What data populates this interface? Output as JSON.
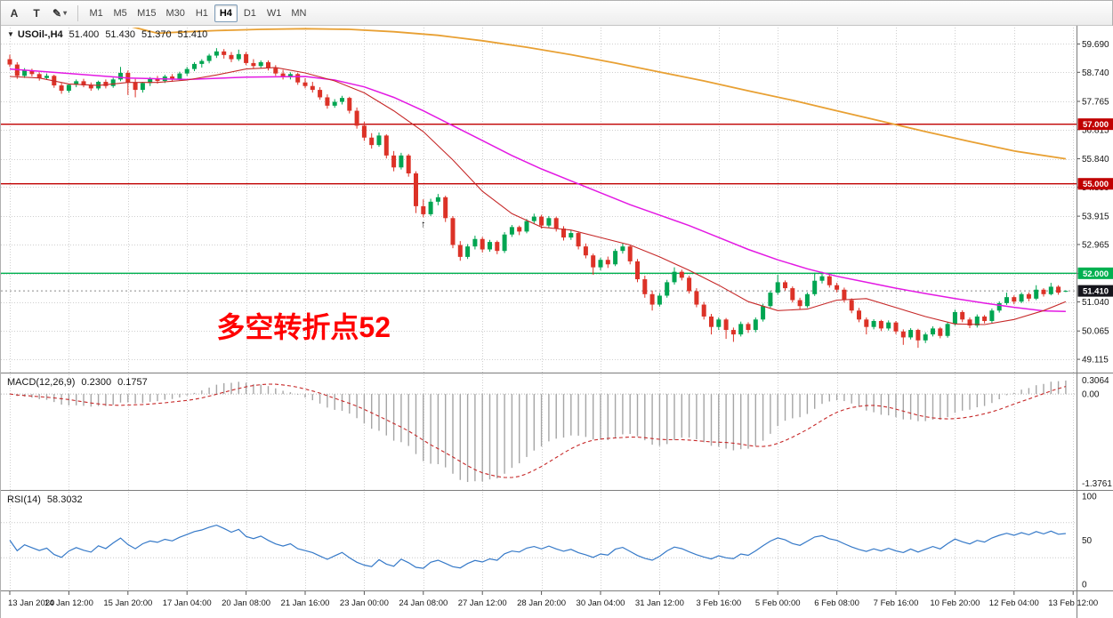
{
  "icons": {
    "chevron_down": "▾",
    "dropdown_triangle": "▼"
  },
  "toolbar": {
    "tools": [
      {
        "label": "A"
      },
      {
        "label": "T"
      },
      {
        "label": "✎"
      }
    ],
    "timeframes": [
      {
        "label": "M1"
      },
      {
        "label": "M5"
      },
      {
        "label": "M15"
      },
      {
        "label": "M30"
      },
      {
        "label": "H1"
      },
      {
        "label": "H4"
      },
      {
        "label": "D1"
      },
      {
        "label": "W1"
      },
      {
        "label": "MN"
      }
    ],
    "active_timeframe": "H4"
  },
  "chart": {
    "header": {
      "symbol": "USOil-,H4",
      "ohlc": [
        "51.400",
        "51.430",
        "51.370",
        "51.410"
      ]
    },
    "price_axis_ticks": [
      "59.690",
      "58.740",
      "57.765",
      "56.815",
      "55.840",
      "54.890",
      "53.915",
      "52.965",
      "51.990",
      "51.040",
      "50.065",
      "49.115"
    ],
    "hlines": [
      {
        "label": "57.000",
        "price": 57.0,
        "color": "#c00000"
      },
      {
        "label": "55.000",
        "price": 55.0,
        "color": "#c00000"
      },
      {
        "label": "52.000",
        "price": 52.0,
        "color": "#00b050"
      }
    ],
    "current_price": {
      "label": "51.410",
      "price": 51.41,
      "badge_color": "#15151c"
    },
    "annotation": {
      "text": "多空转折点52",
      "color": "#ff0000",
      "bar": 28,
      "price": 49.86
    },
    "marker": {
      "glyph": "↑",
      "bar": 56,
      "price": 53.88
    },
    "time_labels": [
      "13 Jan 2020",
      "14 Jan 12:00",
      "15 Jan 20:00",
      "17 Jan 04:00",
      "20 Jan 08:00",
      "21 Jan 16:00",
      "23 Jan 00:00",
      "24 Jan 08:00",
      "27 Jan 12:00",
      "28 Jan 20:00",
      "30 Jan 04:00",
      "31 Jan 12:00",
      "3 Feb 16:00",
      "5 Feb 00:00",
      "6 Feb 08:00",
      "7 Feb 16:00",
      "10 Feb 20:00",
      "12 Feb 04:00",
      "13 Feb 12:00"
    ],
    "bars_per_time_label": 8
  },
  "chart_data": {
    "type": "candlestick",
    "title": "USOil- H4",
    "ylim": [
      48.7,
      60.24
    ],
    "colors": {
      "bull": "#00a551",
      "bear": "#dc3227",
      "grid": "#cfcfcf",
      "background": "#ffffff"
    },
    "candles": [
      [
        59.18,
        59.33,
        58.92,
        59.0
      ],
      [
        59.0,
        59.08,
        58.52,
        58.62
      ],
      [
        58.62,
        58.88,
        58.55,
        58.8
      ],
      [
        58.8,
        58.86,
        58.6,
        58.68
      ],
      [
        58.68,
        58.74,
        58.46,
        58.55
      ],
      [
        58.55,
        58.7,
        58.48,
        58.62
      ],
      [
        58.62,
        58.66,
        58.22,
        58.3
      ],
      [
        58.3,
        58.38,
        58.02,
        58.12
      ],
      [
        58.12,
        58.36,
        58.05,
        58.32
      ],
      [
        58.32,
        58.5,
        58.24,
        58.44
      ],
      [
        58.44,
        58.52,
        58.24,
        58.3
      ],
      [
        58.3,
        58.4,
        58.12,
        58.2
      ],
      [
        58.2,
        58.46,
        58.14,
        58.42
      ],
      [
        58.42,
        58.5,
        58.2,
        58.28
      ],
      [
        58.28,
        58.56,
        58.22,
        58.5
      ],
      [
        58.5,
        58.92,
        58.44,
        58.72
      ],
      [
        58.72,
        58.8,
        57.98,
        58.4
      ],
      [
        58.4,
        58.52,
        57.9,
        58.15
      ],
      [
        58.15,
        58.42,
        58.06,
        58.38
      ],
      [
        58.38,
        58.58,
        58.28,
        58.52
      ],
      [
        58.52,
        58.62,
        58.36,
        58.45
      ],
      [
        58.45,
        58.66,
        58.38,
        58.6
      ],
      [
        58.6,
        58.68,
        58.42,
        58.52
      ],
      [
        58.52,
        58.76,
        58.46,
        58.7
      ],
      [
        58.7,
        58.92,
        58.62,
        58.85
      ],
      [
        58.85,
        59.08,
        58.78,
        59.02
      ],
      [
        59.02,
        59.18,
        58.9,
        59.12
      ],
      [
        59.12,
        59.36,
        59.04,
        59.3
      ],
      [
        59.3,
        59.55,
        59.22,
        59.44
      ],
      [
        59.44,
        59.52,
        59.2,
        59.32
      ],
      [
        59.32,
        59.42,
        59.08,
        59.18
      ],
      [
        59.18,
        59.5,
        59.12,
        59.35
      ],
      [
        59.35,
        59.42,
        58.98,
        59.05
      ],
      [
        59.05,
        59.18,
        58.86,
        58.95
      ],
      [
        58.95,
        59.14,
        58.88,
        59.08
      ],
      [
        59.08,
        59.14,
        58.8,
        58.88
      ],
      [
        58.88,
        58.98,
        58.62,
        58.7
      ],
      [
        58.7,
        58.82,
        58.5,
        58.58
      ],
      [
        58.58,
        58.74,
        58.5,
        58.68
      ],
      [
        58.68,
        58.72,
        58.32,
        58.4
      ],
      [
        58.4,
        58.54,
        58.2,
        58.28
      ],
      [
        58.28,
        58.42,
        58.06,
        58.15
      ],
      [
        58.15,
        58.24,
        57.82,
        57.9
      ],
      [
        57.9,
        58.0,
        57.52,
        57.62
      ],
      [
        57.62,
        57.84,
        57.55,
        57.75
      ],
      [
        57.75,
        57.95,
        57.66,
        57.88
      ],
      [
        57.88,
        57.92,
        57.36,
        57.45
      ],
      [
        57.45,
        57.56,
        56.85,
        56.95
      ],
      [
        56.95,
        57.08,
        56.44,
        56.55
      ],
      [
        56.55,
        56.7,
        56.18,
        56.3
      ],
      [
        56.3,
        56.72,
        56.24,
        56.62
      ],
      [
        56.62,
        56.66,
        55.85,
        55.95
      ],
      [
        55.95,
        56.1,
        55.42,
        55.55
      ],
      [
        55.55,
        56.04,
        55.48,
        55.95
      ],
      [
        55.95,
        56.0,
        55.24,
        55.35
      ],
      [
        55.35,
        55.42,
        54.02,
        54.25
      ],
      [
        54.25,
        54.48,
        53.88,
        53.98
      ],
      [
        53.98,
        54.5,
        53.92,
        54.4
      ],
      [
        54.4,
        54.66,
        54.28,
        54.55
      ],
      [
        54.55,
        54.6,
        53.72,
        53.85
      ],
      [
        53.85,
        53.92,
        52.84,
        52.95
      ],
      [
        52.95,
        53.08,
        52.42,
        52.55
      ],
      [
        52.55,
        52.98,
        52.48,
        52.9
      ],
      [
        52.9,
        53.26,
        52.8,
        53.15
      ],
      [
        53.15,
        53.22,
        52.7,
        52.8
      ],
      [
        52.8,
        53.12,
        52.72,
        53.05
      ],
      [
        53.05,
        53.1,
        52.64,
        52.75
      ],
      [
        52.75,
        53.38,
        52.68,
        53.3
      ],
      [
        53.3,
        53.62,
        53.22,
        53.55
      ],
      [
        53.55,
        53.6,
        53.28,
        53.4
      ],
      [
        53.4,
        53.82,
        53.34,
        53.75
      ],
      [
        53.75,
        54.0,
        53.66,
        53.9
      ],
      [
        53.9,
        53.96,
        53.5,
        53.6
      ],
      [
        53.6,
        53.92,
        53.52,
        53.85
      ],
      [
        53.85,
        53.9,
        53.4,
        53.5
      ],
      [
        53.5,
        53.58,
        53.1,
        53.2
      ],
      [
        53.2,
        53.44,
        53.12,
        53.35
      ],
      [
        53.35,
        53.4,
        52.8,
        52.9
      ],
      [
        52.9,
        53.0,
        52.5,
        52.6
      ],
      [
        52.6,
        52.66,
        51.95,
        52.2
      ],
      [
        52.2,
        52.52,
        52.1,
        52.45
      ],
      [
        52.45,
        52.56,
        52.18,
        52.3
      ],
      [
        52.3,
        52.82,
        52.24,
        52.75
      ],
      [
        52.75,
        53.0,
        52.66,
        52.9
      ],
      [
        52.9,
        52.94,
        52.3,
        52.4
      ],
      [
        52.4,
        52.48,
        51.7,
        51.8
      ],
      [
        51.8,
        51.92,
        51.18,
        51.3
      ],
      [
        51.3,
        51.42,
        50.75,
        50.95
      ],
      [
        50.95,
        51.34,
        50.88,
        51.25
      ],
      [
        51.25,
        51.78,
        51.18,
        51.7
      ],
      [
        51.7,
        52.2,
        51.62,
        52.05
      ],
      [
        52.05,
        52.12,
        51.76,
        51.85
      ],
      [
        51.85,
        51.92,
        51.32,
        51.4
      ],
      [
        51.4,
        51.5,
        50.86,
        50.95
      ],
      [
        50.95,
        51.04,
        50.45,
        50.55
      ],
      [
        50.55,
        50.64,
        49.95,
        50.2
      ],
      [
        50.2,
        50.52,
        50.1,
        50.45
      ],
      [
        50.45,
        50.5,
        49.8,
        50.1
      ],
      [
        50.1,
        50.18,
        49.7,
        49.95
      ],
      [
        49.95,
        50.38,
        49.88,
        50.3
      ],
      [
        50.3,
        50.36,
        50.0,
        50.1
      ],
      [
        50.1,
        50.52,
        50.02,
        50.45
      ],
      [
        50.45,
        50.98,
        50.38,
        50.9
      ],
      [
        50.9,
        51.42,
        50.84,
        51.35
      ],
      [
        51.35,
        51.95,
        51.28,
        51.7
      ],
      [
        51.7,
        51.76,
        51.42,
        51.5
      ],
      [
        51.5,
        51.56,
        51.02,
        51.1
      ],
      [
        51.1,
        51.18,
        50.78,
        50.9
      ],
      [
        50.9,
        51.36,
        50.84,
        51.3
      ],
      [
        51.3,
        52.02,
        51.24,
        51.75
      ],
      [
        51.75,
        52.05,
        51.66,
        51.9
      ],
      [
        51.9,
        51.96,
        51.52,
        51.6
      ],
      [
        51.6,
        51.68,
        51.36,
        51.45
      ],
      [
        51.45,
        51.52,
        51.02,
        51.1
      ],
      [
        51.1,
        51.16,
        50.66,
        50.75
      ],
      [
        50.75,
        50.84,
        50.36,
        50.45
      ],
      [
        50.45,
        50.52,
        49.95,
        50.2
      ],
      [
        50.2,
        50.46,
        50.12,
        50.4
      ],
      [
        50.4,
        50.44,
        50.06,
        50.15
      ],
      [
        50.15,
        50.42,
        50.08,
        50.35
      ],
      [
        50.35,
        50.4,
        49.96,
        50.05
      ],
      [
        50.05,
        50.12,
        49.6,
        49.85
      ],
      [
        49.85,
        50.16,
        49.78,
        50.1
      ],
      [
        50.1,
        50.14,
        49.5,
        49.75
      ],
      [
        49.75,
        50.02,
        49.66,
        49.95
      ],
      [
        49.95,
        50.22,
        49.88,
        50.15
      ],
      [
        50.15,
        50.2,
        49.82,
        49.9
      ],
      [
        49.9,
        50.36,
        49.84,
        50.3
      ],
      [
        50.3,
        50.78,
        50.24,
        50.7
      ],
      [
        50.7,
        50.76,
        50.36,
        50.45
      ],
      [
        50.45,
        50.52,
        50.16,
        50.25
      ],
      [
        50.25,
        50.62,
        50.18,
        50.55
      ],
      [
        50.55,
        50.6,
        50.32,
        50.4
      ],
      [
        50.4,
        50.82,
        50.34,
        50.75
      ],
      [
        50.75,
        51.06,
        50.68,
        51.0
      ],
      [
        51.0,
        51.35,
        50.94,
        51.2
      ],
      [
        51.2,
        51.26,
        50.96,
        51.05
      ],
      [
        51.05,
        51.36,
        51.0,
        51.3
      ],
      [
        51.3,
        51.36,
        51.06,
        51.15
      ],
      [
        51.15,
        51.6,
        51.1,
        51.45
      ],
      [
        51.45,
        51.5,
        51.22,
        51.3
      ],
      [
        51.3,
        51.68,
        51.26,
        51.55
      ],
      [
        51.55,
        51.6,
        51.28,
        51.35
      ],
      [
        51.4,
        51.43,
        51.37,
        51.41
      ]
    ],
    "overlays": [
      {
        "name": "ma-slow-orange",
        "color": "#e8a033",
        "width": 1.8,
        "points": [
          [
            16,
            60.3
          ],
          [
            20,
            60.05
          ],
          [
            24,
            60.1
          ],
          [
            28,
            60.14
          ],
          [
            34,
            60.18
          ],
          [
            40,
            60.2
          ],
          [
            46,
            60.18
          ],
          [
            52,
            60.1
          ],
          [
            58,
            59.98
          ],
          [
            64,
            59.8
          ],
          [
            70,
            59.58
          ],
          [
            76,
            59.33
          ],
          [
            82,
            59.05
          ],
          [
            88,
            58.75
          ],
          [
            94,
            58.45
          ],
          [
            100,
            58.12
          ],
          [
            106,
            57.8
          ],
          [
            112,
            57.45
          ],
          [
            118,
            57.1
          ],
          [
            124,
            56.75
          ],
          [
            130,
            56.42
          ],
          [
            136,
            56.1
          ],
          [
            143,
            55.84
          ]
        ]
      },
      {
        "name": "ma-mid-magenta",
        "color": "#e319e3",
        "width": 1.5,
        "points": [
          [
            0,
            58.85
          ],
          [
            8,
            58.7
          ],
          [
            16,
            58.55
          ],
          [
            24,
            58.5
          ],
          [
            32,
            58.58
          ],
          [
            40,
            58.6
          ],
          [
            44,
            58.48
          ],
          [
            48,
            58.25
          ],
          [
            52,
            57.9
          ],
          [
            56,
            57.45
          ],
          [
            60,
            56.95
          ],
          [
            64,
            56.45
          ],
          [
            68,
            55.95
          ],
          [
            72,
            55.5
          ],
          [
            76,
            55.1
          ],
          [
            80,
            54.7
          ],
          [
            84,
            54.3
          ],
          [
            88,
            53.95
          ],
          [
            92,
            53.6
          ],
          [
            96,
            53.2
          ],
          [
            100,
            52.8
          ],
          [
            104,
            52.45
          ],
          [
            108,
            52.15
          ],
          [
            112,
            51.9
          ],
          [
            116,
            51.7
          ],
          [
            120,
            51.5
          ],
          [
            124,
            51.32
          ],
          [
            128,
            51.15
          ],
          [
            132,
            51.0
          ],
          [
            136,
            50.86
          ],
          [
            140,
            50.74
          ],
          [
            143,
            50.72
          ]
        ]
      },
      {
        "name": "ma-fast-red",
        "color": "#c62828",
        "width": 1.1,
        "points": [
          [
            0,
            58.6
          ],
          [
            4,
            58.55
          ],
          [
            8,
            58.35
          ],
          [
            12,
            58.3
          ],
          [
            16,
            58.4
          ],
          [
            20,
            58.4
          ],
          [
            24,
            58.48
          ],
          [
            28,
            58.65
          ],
          [
            32,
            58.85
          ],
          [
            36,
            58.9
          ],
          [
            40,
            58.72
          ],
          [
            44,
            58.45
          ],
          [
            48,
            58.05
          ],
          [
            52,
            57.45
          ],
          [
            56,
            56.75
          ],
          [
            60,
            55.8
          ],
          [
            64,
            54.75
          ],
          [
            68,
            54.0
          ],
          [
            72,
            53.55
          ],
          [
            76,
            53.45
          ],
          [
            80,
            53.2
          ],
          [
            84,
            52.95
          ],
          [
            88,
            52.55
          ],
          [
            92,
            52.1
          ],
          [
            96,
            51.6
          ],
          [
            100,
            51.05
          ],
          [
            104,
            50.75
          ],
          [
            108,
            50.8
          ],
          [
            112,
            51.1
          ],
          [
            116,
            51.15
          ],
          [
            120,
            50.85
          ],
          [
            124,
            50.55
          ],
          [
            128,
            50.3
          ],
          [
            132,
            50.28
          ],
          [
            136,
            50.45
          ],
          [
            140,
            50.75
          ],
          [
            143,
            51.05
          ]
        ]
      }
    ],
    "indicators": [
      {
        "type": "macd",
        "label": "MACD(12,26,9)",
        "params": [
          12,
          26,
          9
        ],
        "values": [
          "0.2300",
          "0.1757"
        ],
        "axis_labels": [
          "0.3064",
          "0.00",
          "-1.3761"
        ],
        "hist_color": "#a6a6a6",
        "signal_color": "#c62828"
      },
      {
        "type": "rsi",
        "label": "RSI(14)",
        "params": [
          14
        ],
        "value": "58.3032",
        "axis_labels": [
          "100",
          "50",
          "0"
        ],
        "levels": [
          70,
          30
        ],
        "color": "#3579c8"
      }
    ]
  }
}
